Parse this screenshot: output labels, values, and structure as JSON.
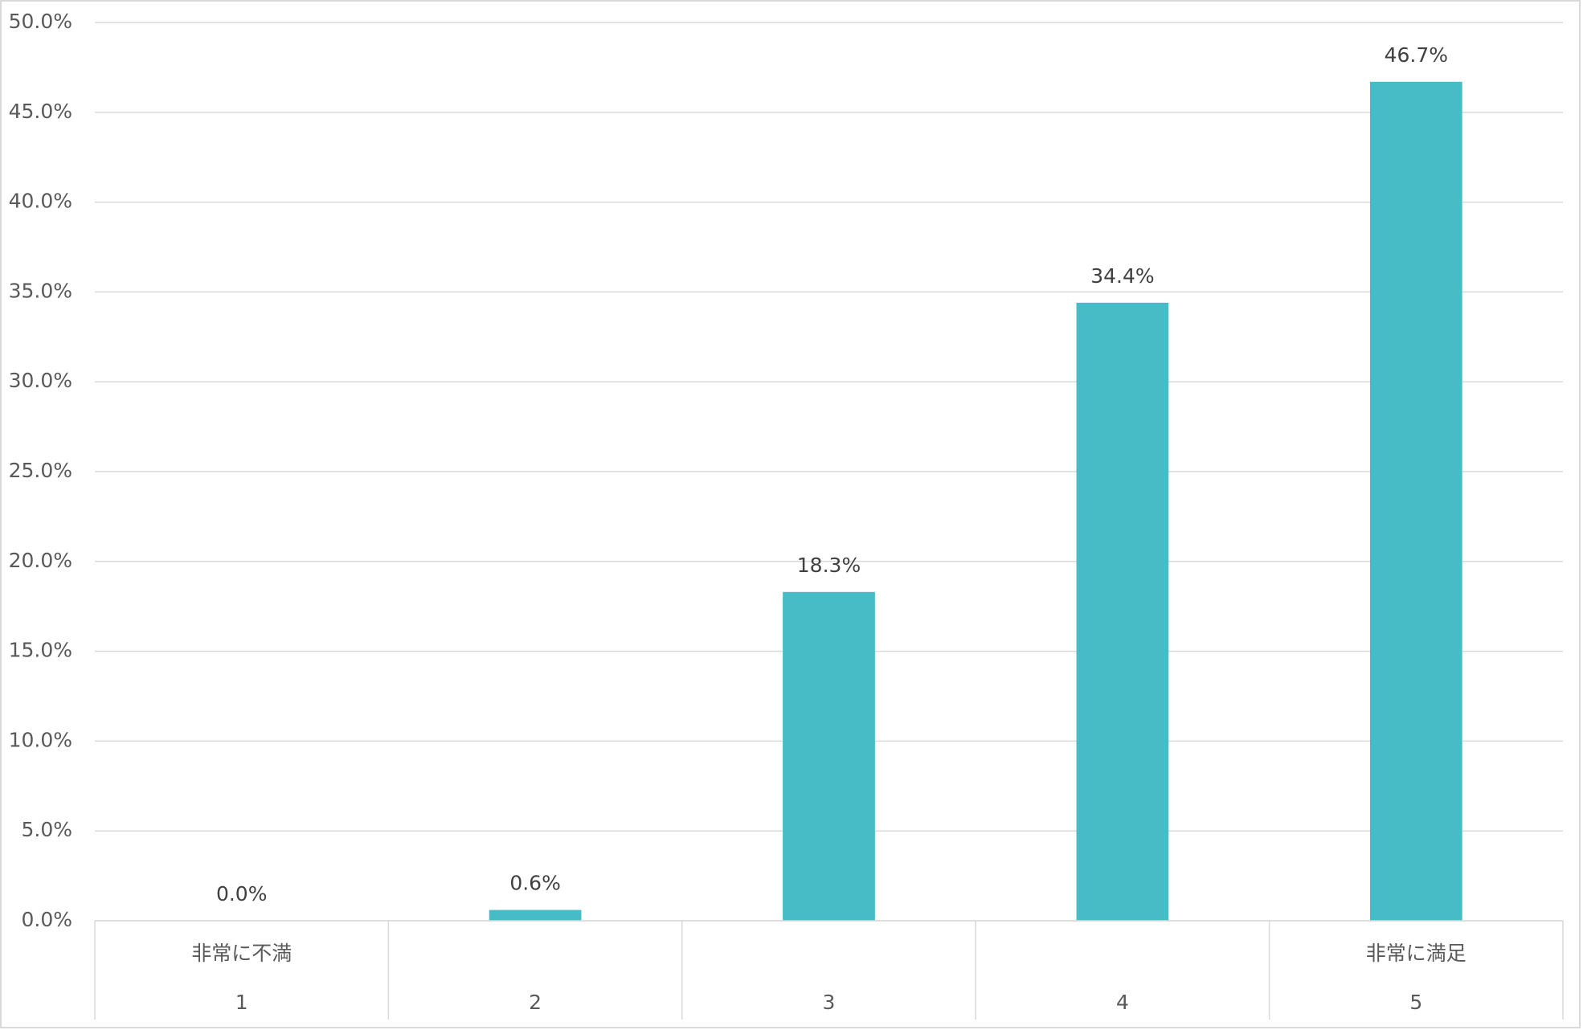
{
  "chart_data": {
    "type": "bar",
    "categories": [
      "1",
      "2",
      "3",
      "4",
      "5"
    ],
    "category_groups": [
      "非常に不満",
      null,
      null,
      null,
      "非常に満足"
    ],
    "values": [
      0,
      0.6,
      18.3,
      34.4,
      46.7
    ],
    "value_labels": [
      "0.0%",
      "0.6%",
      "18.3%",
      "34.4%",
      "46.7%"
    ],
    "color": "#47bcc6",
    "ylim": [
      0,
      50
    ],
    "yticks": [
      {
        "value": 0,
        "label": "0.0%"
      },
      {
        "value": 5,
        "label": "5.0%"
      },
      {
        "value": 10,
        "label": "10.0%"
      },
      {
        "value": 15,
        "label": "15.0%"
      },
      {
        "value": 20,
        "label": "20.0%"
      },
      {
        "value": 25,
        "label": "25.0%"
      },
      {
        "value": 30,
        "label": "30.0%"
      },
      {
        "value": 35,
        "label": "35.0%"
      },
      {
        "value": 40,
        "label": "40.0%"
      },
      {
        "value": 45,
        "label": "45.0%"
      },
      {
        "value": 50,
        "label": "50.0%"
      }
    ],
    "grid": true
  }
}
